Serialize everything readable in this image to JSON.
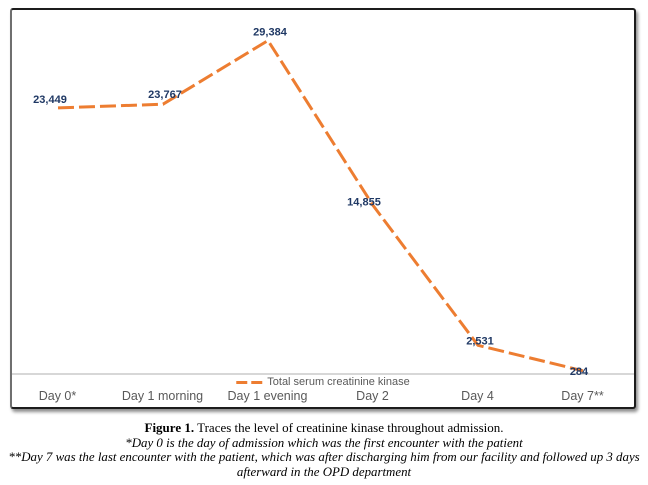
{
  "figure": {
    "caption_label": "Figure 1.",
    "caption_text": " Traces the level of creatinine kinase throughout admission.",
    "footnote1": "*Day 0 is the day of admission which was the first encounter with the patient",
    "footnote2": "**Day 7 was the last encounter with the patient, which was after discharging him from our facility and followed up 3 days afterward in the OPD department"
  },
  "chart_data": {
    "type": "line",
    "title": "",
    "xlabel": "",
    "ylabel": "",
    "categories": [
      "Day 0*",
      "Day 1 morning",
      "Day 1 evening",
      "Day 2",
      "Day 4",
      "Day 7**"
    ],
    "series": [
      {
        "name": "Total serum creatinine kinase",
        "values": [
          23449,
          23767,
          29384,
          14855,
          2531,
          284
        ],
        "labels": [
          "23,449",
          "23,767",
          "29,384",
          "14,855",
          "2,531",
          "284"
        ]
      }
    ],
    "ylim": [
      0,
      32000
    ],
    "grid": false,
    "y_axis_visible": false,
    "line_style": "dashed",
    "legend_position": "bottom-center",
    "colors": {
      "line": "#ED7D31",
      "data_label": "#1F3864",
      "axis_line": "#BFBFBF",
      "axis_label": "#595959"
    }
  }
}
